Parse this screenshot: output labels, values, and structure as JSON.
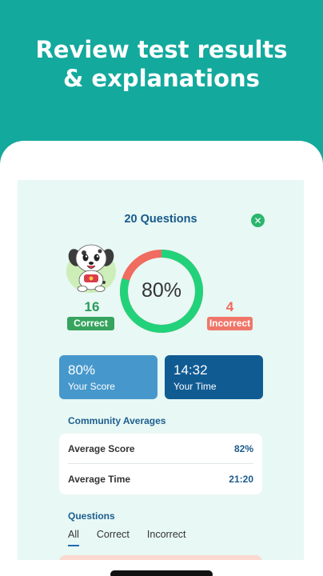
{
  "headline": {
    "line1": "Review test results",
    "line2": "& explanations"
  },
  "results": {
    "title": "20 Questions",
    "close_icon": "close-icon",
    "score_percent": 80,
    "score_text": "80%",
    "correct_count": "16",
    "correct_label": "Correct",
    "incorrect_count": "4",
    "incorrect_label": "Incorrect"
  },
  "stats": {
    "score_value": "80%",
    "score_label": "Your Score",
    "time_value": "14:32",
    "time_label": "Your Time"
  },
  "community": {
    "heading": "Community Averages",
    "rows": [
      {
        "label": "Average Score",
        "value": "82%"
      },
      {
        "label": "Average Time",
        "value": "21:20"
      }
    ]
  },
  "questions": {
    "heading": "Questions",
    "tabs": [
      "All",
      "Correct",
      "Incorrect"
    ],
    "active_tab": "All"
  },
  "colors": {
    "background": "#14a99d",
    "correct": "#36a45e",
    "incorrect": "#f0766a",
    "ring_green": "#22d27b",
    "ring_red": "#f06b60"
  }
}
